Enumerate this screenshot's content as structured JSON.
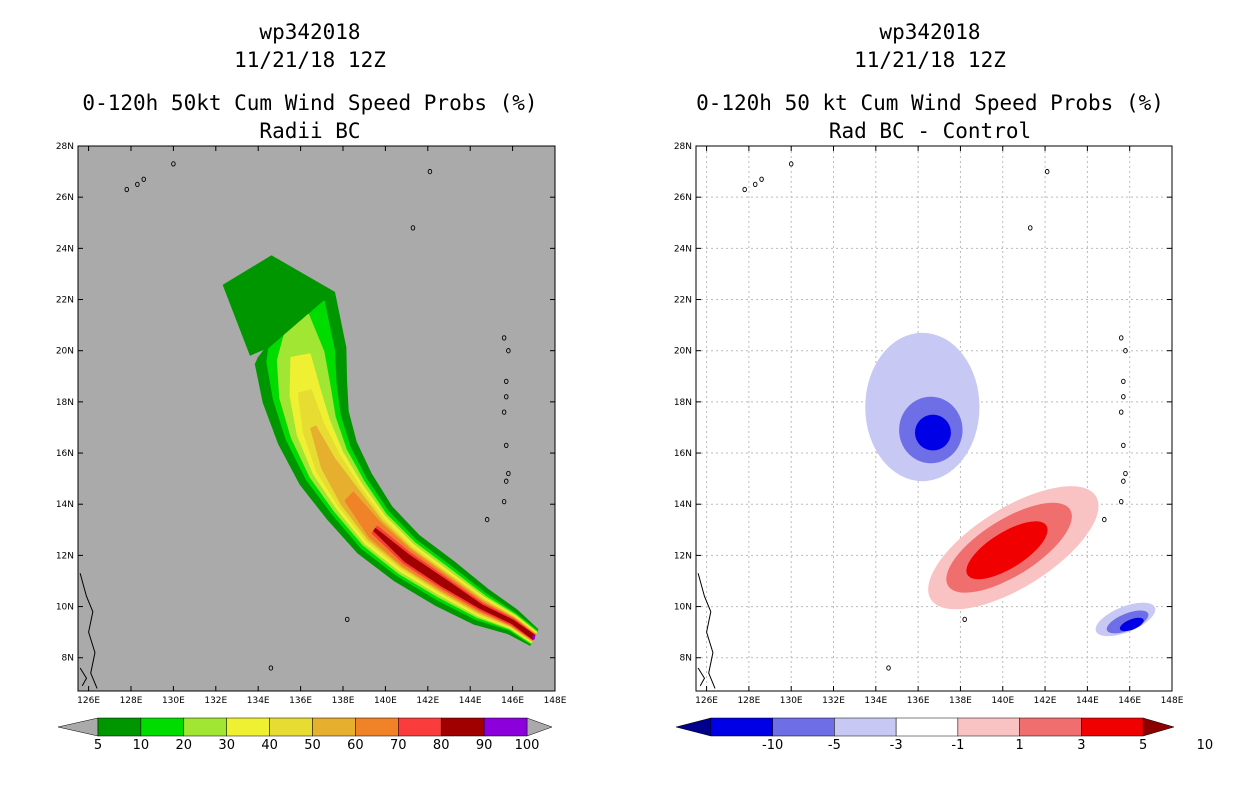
{
  "left_panel": {
    "storm": "wp342018",
    "date": "11/21/18 12Z",
    "product": "0-120h 50kt Cum Wind Speed Probs (%)",
    "subtitle": "Radii BC",
    "background_color": "#aaaaaa"
  },
  "right_panel": {
    "storm": "wp342018",
    "date": "11/21/18 12Z",
    "product": "0-120h 50 kt Cum Wind Speed Probs (%)",
    "subtitle": "Rad BC - Control",
    "background_color": "#ffffff"
  },
  "chart_data": [
    {
      "type": "heatmap",
      "title": "0-120h 50kt Cum Wind Speed Probs (%) — Radii BC",
      "x_ticks": [
        "126E",
        "128E",
        "130E",
        "132E",
        "134E",
        "136E",
        "138E",
        "140E",
        "142E",
        "144E",
        "146E",
        "148E"
      ],
      "y_ticks": [
        "8N",
        "10N",
        "12N",
        "14N",
        "16N",
        "18N",
        "20N",
        "22N",
        "24N",
        "26N",
        "28N"
      ],
      "xlim": [
        125.5,
        148
      ],
      "ylim": [
        6.7,
        28
      ],
      "levels": [
        5,
        10,
        20,
        30,
        40,
        50,
        60,
        70,
        80,
        90,
        100
      ],
      "colors": [
        "#009600",
        "#00dc00",
        "#a0e632",
        "#f0f032",
        "#e6dc32",
        "#e6af2d",
        "#f08228",
        "#fa3c3c",
        "#a00000",
        "#8c00dc"
      ],
      "legend_labels": [
        "5",
        "10",
        "20",
        "30",
        "40",
        "50",
        "60",
        "70",
        "80",
        "90",
        "100"
      ],
      "track_centerline": [
        [
          147.0,
          8.8
        ],
        [
          146.0,
          9.4
        ],
        [
          144.5,
          10.0
        ],
        [
          142.8,
          10.9
        ],
        [
          141.0,
          11.9
        ],
        [
          139.5,
          13.0
        ],
        [
          138.3,
          14.3
        ],
        [
          137.3,
          15.6
        ],
        [
          136.6,
          17.0
        ],
        [
          136.2,
          18.4
        ],
        [
          136.0,
          19.8
        ],
        [
          135.8,
          21.0
        ],
        [
          134.5,
          21.9
        ],
        [
          133.0,
          21.2
        ]
      ],
      "bands": [
        {
          "level": 5,
          "half_width": [
            0.35,
            0.5,
            0.75,
            0.95,
            1.05,
            1.2,
            1.35,
            1.55,
            1.75,
            2.0,
            2.15,
            2.2,
            1.8,
            1.5
          ]
        },
        {
          "level": 10,
          "half_width": [
            0.3,
            0.35,
            0.55,
            0.72,
            0.82,
            0.95,
            1.05,
            1.2,
            1.35,
            1.5,
            1.6,
            1.6,
            0,
            0
          ]
        },
        {
          "level": 20,
          "half_width": [
            0.25,
            0.3,
            0.45,
            0.6,
            0.7,
            0.8,
            0.9,
            1.0,
            1.1,
            1.2,
            1.1,
            0.7,
            0,
            0
          ]
        },
        {
          "level": 30,
          "half_width": [
            0.22,
            0.26,
            0.38,
            0.5,
            0.6,
            0.7,
            0.75,
            0.8,
            0.8,
            0.7,
            0.45,
            0,
            0,
            0
          ]
        },
        {
          "level": 40,
          "half_width": [
            0.18,
            0.22,
            0.32,
            0.42,
            0.5,
            0.58,
            0.62,
            0.62,
            0.5,
            0.3,
            0,
            0,
            0,
            0
          ]
        },
        {
          "level": 50,
          "half_width": [
            0.15,
            0.18,
            0.26,
            0.36,
            0.42,
            0.48,
            0.48,
            0.35,
            0.12,
            0,
            0,
            0,
            0,
            0
          ]
        },
        {
          "level": 60,
          "half_width": [
            0.12,
            0.15,
            0.2,
            0.3,
            0.36,
            0.38,
            0.25,
            0,
            0,
            0,
            0,
            0,
            0,
            0
          ]
        },
        {
          "level": 70,
          "half_width": [
            0.1,
            0.12,
            0.14,
            0.22,
            0.25,
            0.18,
            0,
            0,
            0,
            0,
            0,
            0,
            0,
            0
          ]
        },
        {
          "level": 80,
          "half_width": [
            0.08,
            0.06,
            0.07,
            0.14,
            0.15,
            0.05,
            0,
            0,
            0,
            0,
            0,
            0,
            0,
            0
          ]
        },
        {
          "level": 90,
          "half_width": [
            0.06,
            0,
            0,
            0,
            0,
            0,
            0,
            0,
            0,
            0,
            0,
            0,
            0,
            0
          ]
        }
      ]
    },
    {
      "type": "heatmap",
      "title": "0-120h 50 kt Cum Wind Speed Probs (%) — Rad BC - Control",
      "x_ticks": [
        "126E",
        "128E",
        "130E",
        "132E",
        "134E",
        "136E",
        "138E",
        "140E",
        "142E",
        "144E",
        "146E",
        "148E"
      ],
      "y_ticks": [
        "8N",
        "10N",
        "12N",
        "14N",
        "16N",
        "18N",
        "20N",
        "22N",
        "24N",
        "26N",
        "28N"
      ],
      "xlim": [
        125.5,
        148
      ],
      "ylim": [
        6.7,
        28
      ],
      "levels": [
        -10,
        -5,
        -3,
        -1,
        1,
        3,
        5,
        10
      ],
      "colors": [
        "#00008c",
        "#0000e6",
        "#6e6ee6",
        "#c8c8f5",
        "#ffffff",
        "#fac3c3",
        "#f06e6e",
        "#f00000",
        "#8c0000"
      ],
      "legend_labels": [
        "-10",
        "-5",
        "-3",
        "-1",
        "1",
        "3",
        "5",
        "10"
      ],
      "blobs": [
        {
          "level": -1,
          "center": [
            136.2,
            17.8
          ],
          "rx": 2.7,
          "ry": 2.9
        },
        {
          "level": -3,
          "center": [
            136.6,
            16.9
          ],
          "rx": 1.5,
          "ry": 1.3
        },
        {
          "level": -5,
          "center": [
            136.7,
            16.8
          ],
          "rx": 0.85,
          "ry": 0.7
        },
        {
          "level": 1,
          "center": [
            140.5,
            12.3
          ],
          "rx": 4.6,
          "ry": 1.55,
          "angle": -32
        },
        {
          "level": 3,
          "center": [
            140.3,
            12.3
          ],
          "rx": 3.4,
          "ry": 1.1,
          "angle": -32
        },
        {
          "level": 5,
          "center": [
            140.2,
            12.2
          ],
          "rx": 2.2,
          "ry": 0.7,
          "angle": -32
        },
        {
          "level": -1,
          "center": [
            145.8,
            9.5
          ],
          "rx": 1.5,
          "ry": 0.5,
          "angle": -22
        },
        {
          "level": -3,
          "center": [
            145.9,
            9.4
          ],
          "rx": 1.05,
          "ry": 0.33,
          "angle": -22
        },
        {
          "level": -5,
          "center": [
            146.1,
            9.3
          ],
          "rx": 0.6,
          "ry": 0.2,
          "angle": -22
        }
      ]
    }
  ]
}
